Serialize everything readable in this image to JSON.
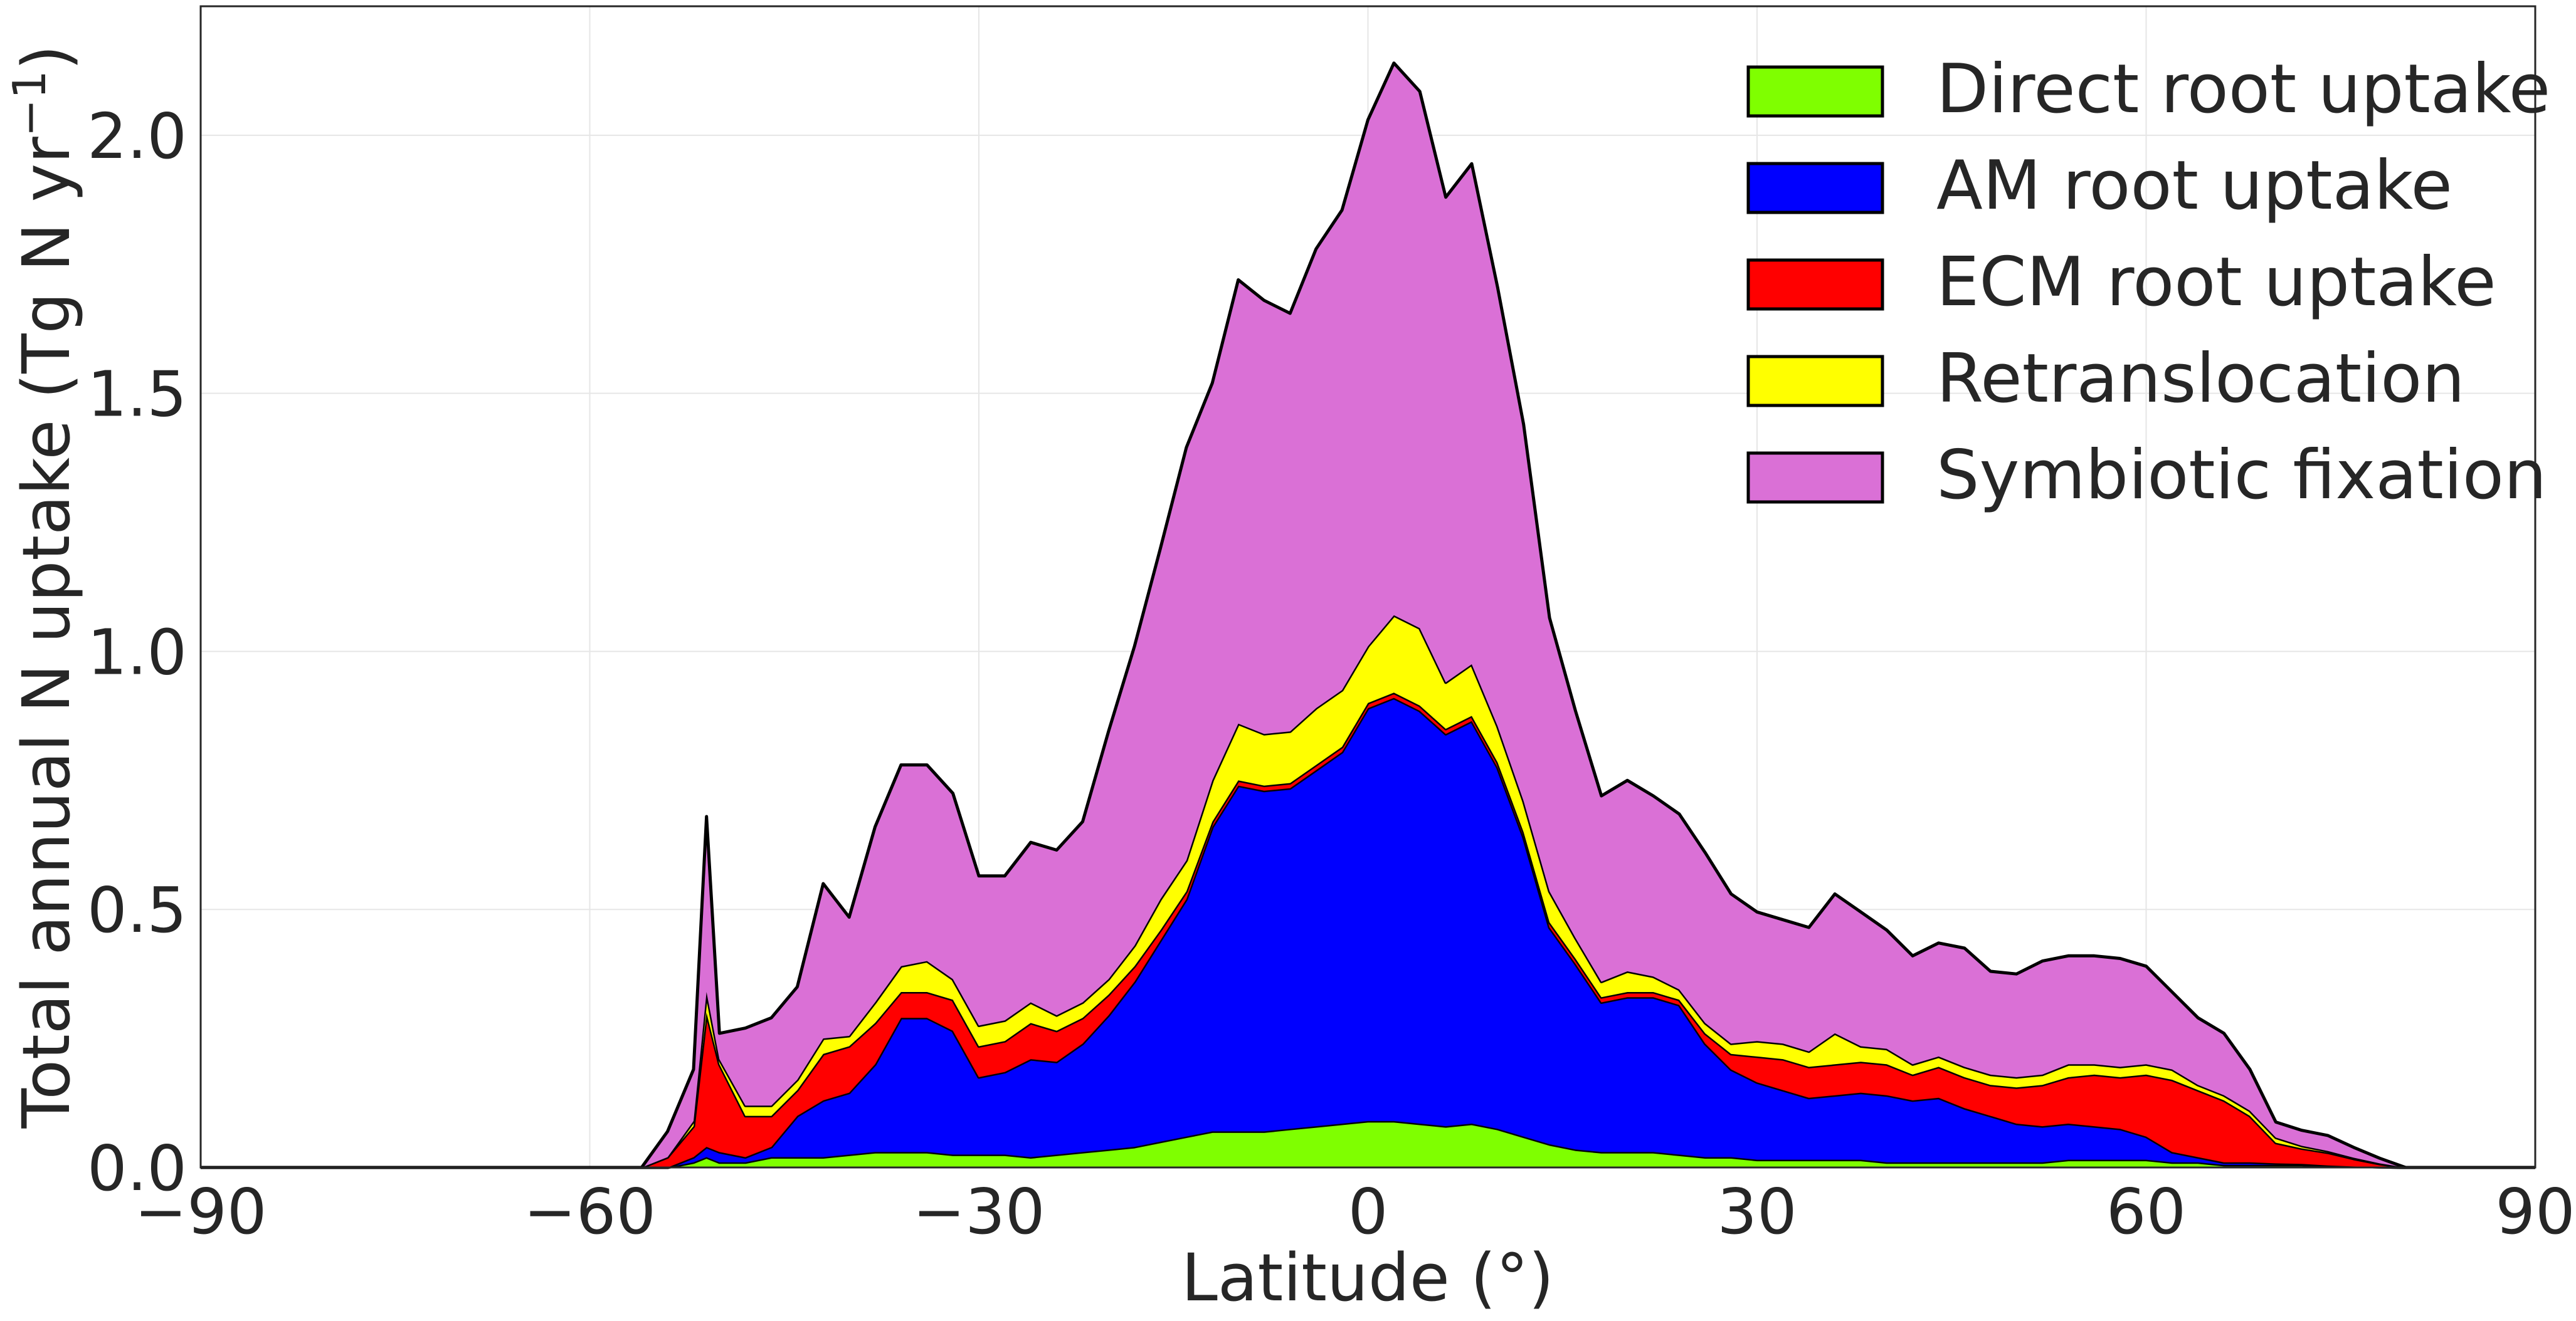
{
  "chart_data": {
    "type": "area",
    "stacked": true,
    "xlabel": "Latitude (°)",
    "ylabel_main": "Total annual N uptake (Tg N yr",
    "ylabel_sup": "−1",
    "ylabel_close": ")",
    "xlim": [
      -90,
      90
    ],
    "ylim": [
      0,
      2.25
    ],
    "xticks": [
      -90,
      -60,
      -30,
      0,
      30,
      60,
      90
    ],
    "xtick_labels": [
      "−90",
      "−60",
      "−30",
      "0",
      "30",
      "60",
      "90"
    ],
    "yticks": [
      0,
      0.5,
      1.0,
      1.5,
      2.0
    ],
    "ytick_labels": [
      "0.0",
      "0.5",
      "1.0",
      "1.5",
      "2.0"
    ],
    "grid": true,
    "legend_position": "top-right",
    "x": [
      -90,
      -56,
      -54,
      -52,
      -51,
      -50,
      -48,
      -46,
      -44,
      -42,
      -40,
      -38,
      -36,
      -34,
      -32,
      -30,
      -28,
      -26,
      -24,
      -22,
      -20,
      -18,
      -16,
      -14,
      -12,
      -10,
      -8,
      -6,
      -4,
      -2,
      0,
      2,
      4,
      6,
      8,
      10,
      12,
      14,
      16,
      18,
      20,
      22,
      24,
      26,
      28,
      30,
      32,
      34,
      36,
      38,
      40,
      42,
      44,
      46,
      48,
      50,
      52,
      54,
      56,
      58,
      60,
      62,
      64,
      66,
      68,
      70,
      72,
      74,
      76,
      78,
      80,
      90
    ],
    "series": [
      {
        "name": "Direct root uptake",
        "color": "#7fff00",
        "values": [
          0,
          0,
          0,
          0.01,
          0.02,
          0.01,
          0.01,
          0.02,
          0.02,
          0.02,
          0.025,
          0.03,
          0.03,
          0.03,
          0.025,
          0.025,
          0.025,
          0.02,
          0.025,
          0.03,
          0.035,
          0.04,
          0.05,
          0.06,
          0.07,
          0.07,
          0.07,
          0.075,
          0.08,
          0.085,
          0.09,
          0.09,
          0.085,
          0.08,
          0.085,
          0.075,
          0.06,
          0.045,
          0.035,
          0.03,
          0.03,
          0.03,
          0.025,
          0.02,
          0.02,
          0.015,
          0.015,
          0.015,
          0.015,
          0.015,
          0.01,
          0.01,
          0.01,
          0.01,
          0.01,
          0.01,
          0.01,
          0.015,
          0.015,
          0.015,
          0.015,
          0.01,
          0.01,
          0.005,
          0.005,
          0.005,
          0.005,
          0.003,
          0.002,
          0.001,
          0,
          0
        ]
      },
      {
        "name": "AM root uptake",
        "color": "#0000ff",
        "values": [
          0,
          0,
          0,
          0.01,
          0.02,
          0.02,
          0.01,
          0.02,
          0.08,
          0.11,
          0.12,
          0.17,
          0.26,
          0.26,
          0.24,
          0.15,
          0.16,
          0.19,
          0.18,
          0.21,
          0.26,
          0.32,
          0.39,
          0.46,
          0.59,
          0.67,
          0.66,
          0.66,
          0.69,
          0.72,
          0.8,
          0.82,
          0.8,
          0.76,
          0.78,
          0.7,
          0.58,
          0.42,
          0.36,
          0.29,
          0.3,
          0.3,
          0.29,
          0.22,
          0.17,
          0.15,
          0.135,
          0.12,
          0.125,
          0.13,
          0.13,
          0.12,
          0.125,
          0.105,
          0.09,
          0.075,
          0.07,
          0.07,
          0.065,
          0.06,
          0.045,
          0.02,
          0.01,
          0.005,
          0.005,
          0.003,
          0.002,
          0.001,
          0,
          0,
          0,
          0
        ]
      },
      {
        "name": "ECM root uptake",
        "color": "#ff0000",
        "values": [
          0,
          0,
          0.02,
          0.06,
          0.26,
          0.17,
          0.08,
          0.06,
          0.05,
          0.09,
          0.09,
          0.08,
          0.05,
          0.05,
          0.06,
          0.06,
          0.06,
          0.07,
          0.06,
          0.05,
          0.04,
          0.03,
          0.02,
          0.015,
          0.01,
          0.01,
          0.01,
          0.01,
          0.01,
          0.01,
          0.01,
          0.01,
          0.01,
          0.01,
          0.01,
          0.01,
          0.01,
          0.01,
          0.01,
          0.01,
          0.01,
          0.01,
          0.01,
          0.02,
          0.03,
          0.05,
          0.06,
          0.06,
          0.06,
          0.06,
          0.06,
          0.05,
          0.06,
          0.06,
          0.06,
          0.07,
          0.08,
          0.09,
          0.1,
          0.1,
          0.12,
          0.14,
          0.13,
          0.12,
          0.09,
          0.04,
          0.03,
          0.025,
          0.015,
          0.006,
          0,
          0
        ]
      },
      {
        "name": "Retranslocation",
        "color": "#ffff00",
        "values": [
          0,
          0,
          0,
          0.01,
          0.04,
          0.01,
          0.02,
          0.02,
          0.02,
          0.03,
          0.02,
          0.04,
          0.05,
          0.06,
          0.04,
          0.04,
          0.04,
          0.04,
          0.03,
          0.03,
          0.03,
          0.04,
          0.06,
          0.06,
          0.08,
          0.11,
          0.1,
          0.1,
          0.11,
          0.11,
          0.11,
          0.15,
          0.15,
          0.09,
          0.1,
          0.07,
          0.06,
          0.06,
          0.04,
          0.03,
          0.04,
          0.03,
          0.02,
          0.02,
          0.02,
          0.03,
          0.03,
          0.03,
          0.06,
          0.03,
          0.03,
          0.02,
          0.02,
          0.02,
          0.02,
          0.02,
          0.02,
          0.025,
          0.02,
          0.02,
          0.02,
          0.02,
          0.01,
          0.01,
          0.01,
          0.01,
          0.005,
          0.003,
          0.002,
          0.001,
          0,
          0
        ]
      },
      {
        "name": "Symbiotic fixation",
        "color": "#da70d6",
        "values": [
          0,
          0,
          0.05,
          0.1,
          0.34,
          0.05,
          0.15,
          0.17,
          0.18,
          0.3,
          0.23,
          0.34,
          0.39,
          0.38,
          0.36,
          0.29,
          0.28,
          0.31,
          0.32,
          0.35,
          0.48,
          0.58,
          0.68,
          0.8,
          0.77,
          0.86,
          0.84,
          0.81,
          0.89,
          0.93,
          1.02,
          1.07,
          1.04,
          0.94,
          0.97,
          0.85,
          0.73,
          0.53,
          0.44,
          0.36,
          0.37,
          0.35,
          0.34,
          0.33,
          0.29,
          0.25,
          0.24,
          0.24,
          0.27,
          0.26,
          0.23,
          0.21,
          0.22,
          0.23,
          0.2,
          0.2,
          0.22,
          0.21,
          0.21,
          0.21,
          0.19,
          0.15,
          0.13,
          0.12,
          0.08,
          0.03,
          0.03,
          0.03,
          0.02,
          0.01,
          0,
          0
        ]
      }
    ]
  }
}
